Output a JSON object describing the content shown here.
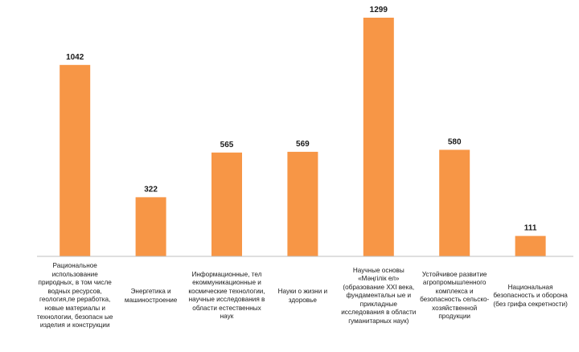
{
  "chart_data": {
    "type": "bar",
    "categories": [
      "Рациональное использование природных, в том числе водных ресурсов, геология,пе реработка, новые материалы и технологии, безопасн ые изделия и конструкции",
      "Энергетика и машиностроение",
      "Информационные, тел екоммуникационные и космические технологии, научные исследования в области естественных наук",
      "Науки о жизни и здоровье",
      "Научные основы «Мәңгілік ел» (образование XXI века, фундаментальн ые и прикладные исследования в области гуманитарных наук)",
      "Устойчивое развитие агропромышленного комплекса и безопасность сельско-хозяйственной продукции",
      "Национальная безопасность и оборона (без грифа секретности)"
    ],
    "values": [
      1042,
      322,
      565,
      569,
      1299,
      580,
      111
    ],
    "value_labels": [
      "1042",
      "322",
      "565",
      "569",
      "1299",
      "580",
      "111"
    ],
    "ylim": [
      0,
      1299
    ],
    "grid": false,
    "legend": "none",
    "colors": {
      "bar": "#F79646",
      "axis": "#bfbfbf",
      "text": "#1a1a1a"
    }
  }
}
